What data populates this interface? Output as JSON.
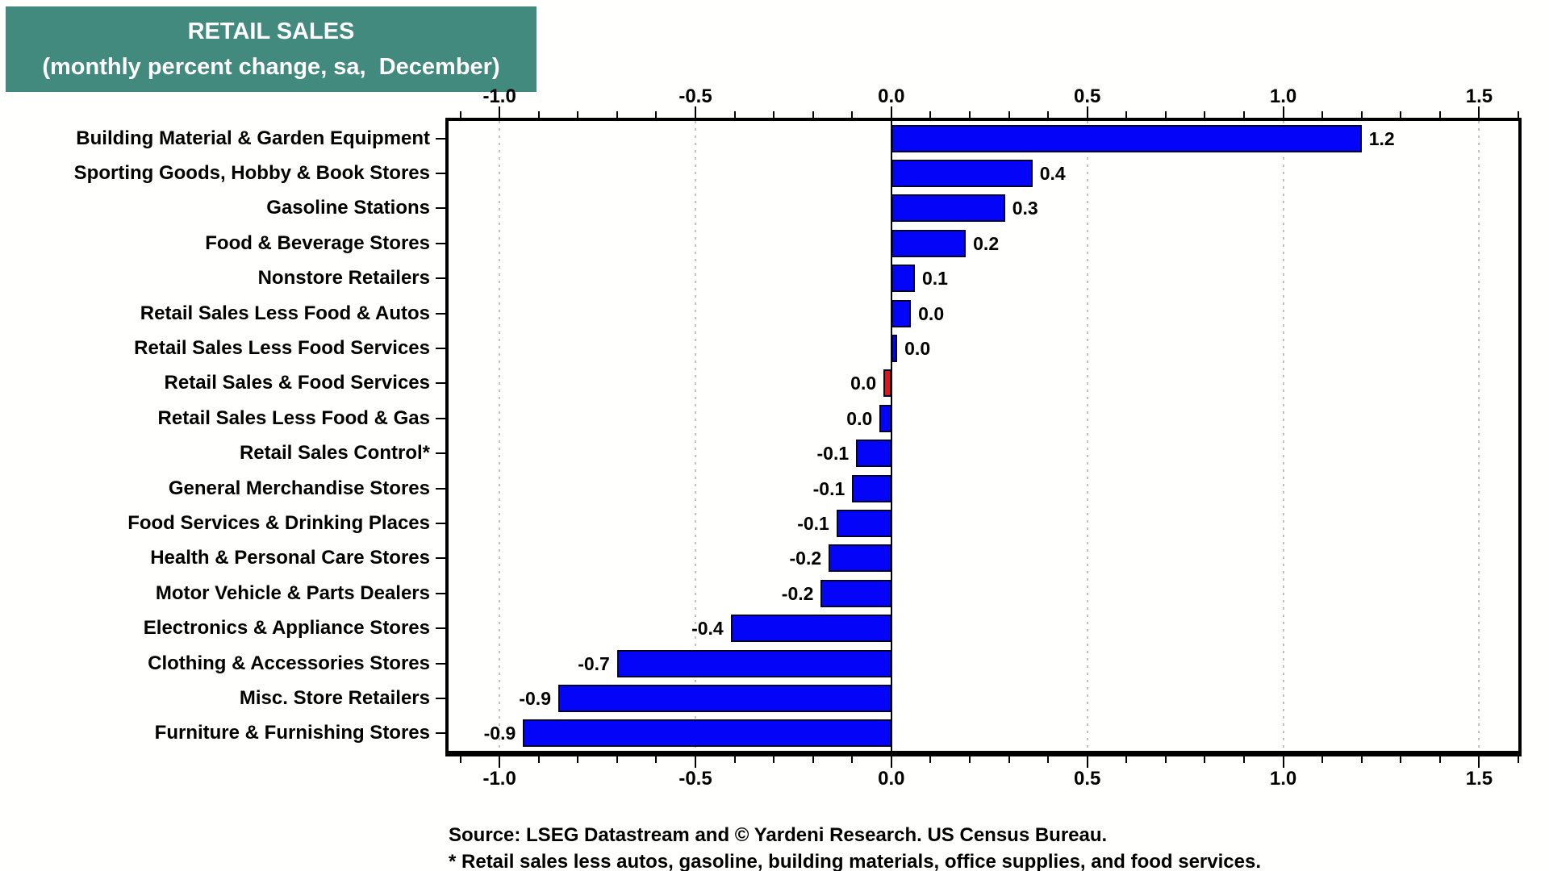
{
  "title": {
    "line1": "RETAIL SALES",
    "line2": "(monthly percent change, sa,  December)"
  },
  "source": {
    "line1": "Source: LSEG Datastream and © Yardeni Research. US Census Bureau.",
    "line2": "* Retail sales less autos, gasoline, building materials, office supplies, and food services."
  },
  "colors": {
    "title_bg": "#428A7E",
    "title_text": "#FFFFFF",
    "bar_blue": "#0404F8",
    "bar_red": "#E21414",
    "bar_edge": "#000030",
    "grid": "#C3C3C3",
    "axis": "#000000",
    "background": "#FFFFFE"
  },
  "chart_data": {
    "type": "bar",
    "orientation": "horizontal",
    "title": "RETAIL SALES",
    "subtitle": "(monthly percent change, sa, December)",
    "xlabel": "monthly percent change",
    "xlim": [
      -1.13,
      1.6
    ],
    "x_major_ticks": [
      -1.0,
      -0.5,
      0.0,
      0.5,
      1.0,
      1.5
    ],
    "x_minor_tick_step": 0.1,
    "grid": "dotted vertical gridlines at major ticks, solid black line at zero",
    "legend_position": "none",
    "axis_labels_position": "top and bottom",
    "bars": [
      {
        "category": "Building Material & Garden Equipment",
        "label": "1.2",
        "value": 1.2,
        "bar_length": 1.2,
        "color": "blue"
      },
      {
        "category": "Sporting Goods, Hobby & Book Stores",
        "label": "0.4",
        "value": 0.4,
        "bar_length": 0.36,
        "color": "blue"
      },
      {
        "category": "Gasoline Stations",
        "label": "0.3",
        "value": 0.3,
        "bar_length": 0.29,
        "color": "blue"
      },
      {
        "category": "Food & Beverage Stores",
        "label": "0.2",
        "value": 0.2,
        "bar_length": 0.19,
        "color": "blue"
      },
      {
        "category": "Nonstore Retailers",
        "label": "0.1",
        "value": 0.1,
        "bar_length": 0.06,
        "color": "blue"
      },
      {
        "category": "Retail Sales Less Food & Autos",
        "label": "0.0",
        "value": 0.0,
        "bar_length": 0.05,
        "color": "blue"
      },
      {
        "category": "Retail Sales Less Food Services",
        "label": "0.0",
        "value": 0.0,
        "bar_length": 0.015,
        "color": "blue"
      },
      {
        "category": "Retail Sales & Food Services",
        "label": "0.0",
        "value": 0.0,
        "bar_length": -0.02,
        "color": "red"
      },
      {
        "category": "Retail Sales Less Food & Gas",
        "label": "0.0",
        "value": 0.0,
        "bar_length": -0.03,
        "color": "blue"
      },
      {
        "category": "Retail Sales Control*",
        "label": "-0.1",
        "value": -0.1,
        "bar_length": -0.09,
        "color": "blue"
      },
      {
        "category": "General Merchandise Stores",
        "label": "-0.1",
        "value": -0.1,
        "bar_length": -0.1,
        "color": "blue"
      },
      {
        "category": "Food Services & Drinking Places",
        "label": "-0.1",
        "value": -0.1,
        "bar_length": -0.14,
        "color": "blue"
      },
      {
        "category": "Health & Personal Care Stores",
        "label": "-0.2",
        "value": -0.2,
        "bar_length": -0.16,
        "color": "blue"
      },
      {
        "category": "Motor Vehicle & Parts Dealers",
        "label": "-0.2",
        "value": -0.2,
        "bar_length": -0.18,
        "color": "blue"
      },
      {
        "category": "Electronics & Appliance Stores",
        "label": "-0.4",
        "value": -0.4,
        "bar_length": -0.41,
        "color": "blue"
      },
      {
        "category": "Clothing & Accessories Stores",
        "label": "-0.7",
        "value": -0.7,
        "bar_length": -0.7,
        "color": "blue"
      },
      {
        "category": "Misc. Store Retailers",
        "label": "-0.9",
        "value": -0.9,
        "bar_length": -0.85,
        "color": "blue"
      },
      {
        "category": "Furniture & Furnishing Stores",
        "label": "-0.9",
        "value": -0.9,
        "bar_length": -0.94,
        "color": "blue"
      }
    ]
  }
}
